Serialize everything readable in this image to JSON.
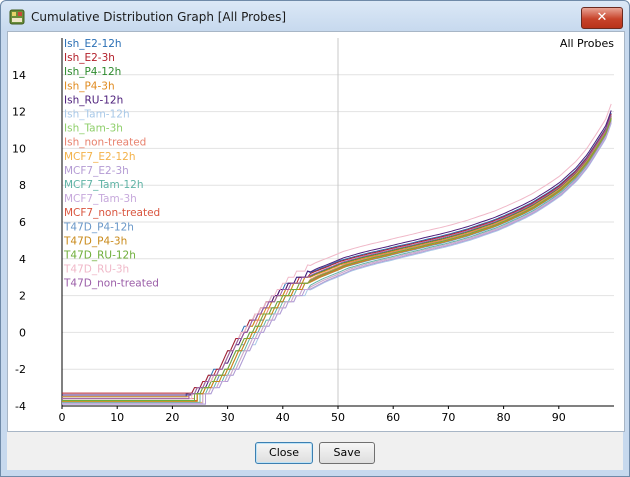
{
  "window": {
    "title": "Cumulative Distribution Graph [All Probes]",
    "close_glyph": "✕"
  },
  "buttons": {
    "close": "Close",
    "save": "Save"
  },
  "chart_data": {
    "type": "line",
    "title": "All Probes",
    "xlabel": "",
    "ylabel": "",
    "xlim": [
      0,
      100
    ],
    "ylim": [
      -4,
      16
    ],
    "xticks": [
      0,
      10,
      20,
      30,
      40,
      50,
      60,
      70,
      80,
      90
    ],
    "yticks": [
      -4,
      -2,
      0,
      2,
      4,
      6,
      8,
      10,
      12,
      14
    ],
    "grid": {
      "x": [
        50
      ],
      "y": [
        -4,
        -2,
        0,
        2,
        4,
        6,
        8,
        10,
        12,
        14
      ]
    },
    "legend_position": "top-left",
    "base_curve": {
      "x": [
        22,
        25,
        28,
        30,
        33,
        35,
        38,
        40,
        43,
        45,
        48,
        50,
        53,
        55,
        58,
        60,
        63,
        65,
        68,
        70,
        73,
        75,
        78,
        80,
        83,
        85,
        88,
        90,
        93,
        95,
        97,
        98.5,
        99.6
      ],
      "y": [
        -3.4,
        -2.8,
        -1.9,
        -0.9,
        0.3,
        1.0,
        1.9,
        2.4,
        2.9,
        3.2,
        3.55,
        3.8,
        4.05,
        4.2,
        4.4,
        4.55,
        4.75,
        4.9,
        5.1,
        5.25,
        5.5,
        5.7,
        6.0,
        6.25,
        6.65,
        6.95,
        7.5,
        7.9,
        8.7,
        9.4,
        10.3,
        11.0,
        11.9
      ]
    },
    "series": [
      {
        "name": "Ish_E2-12h",
        "color": "#2a6fb5",
        "start_x": 22.5,
        "floor_y": -3.5,
        "offset": 0.1
      },
      {
        "name": "Ish_E2-3h",
        "color": "#b3202b",
        "start_x": 22.5,
        "floor_y": -3.3,
        "offset": 0.05
      },
      {
        "name": "Ish_P4-12h",
        "color": "#2e8b2e",
        "start_x": 23.0,
        "floor_y": -3.6,
        "offset": -0.05
      },
      {
        "name": "Ish_P4-3h",
        "color": "#e08a1e",
        "start_x": 23.0,
        "floor_y": -3.5,
        "offset": -0.1
      },
      {
        "name": "Ish_RU-12h",
        "color": "#4b1d7a",
        "start_x": 23.5,
        "floor_y": -3.4,
        "offset": 0.25
      },
      {
        "name": "Ish_Tam-12h",
        "color": "#a9c9e8",
        "start_x": 26.0,
        "floor_y": -3.9,
        "offset": -0.45
      },
      {
        "name": "Ish_Tam-3h",
        "color": "#8fcf6b",
        "start_x": 24.5,
        "floor_y": -3.7,
        "offset": -0.2
      },
      {
        "name": "Ish_non-treated",
        "color": "#e8826e",
        "start_x": 24.0,
        "floor_y": -3.6,
        "offset": -0.1
      },
      {
        "name": "MCF7_E2-12h",
        "color": "#f3b24a",
        "start_x": 25.5,
        "floor_y": -3.8,
        "offset": -0.35
      },
      {
        "name": "MCF7_E2-3h",
        "color": "#b49bd4",
        "start_x": 26.0,
        "floor_y": -3.9,
        "offset": -0.4
      },
      {
        "name": "MCF7_Tam-12h",
        "color": "#5fb3a5",
        "start_x": 25.0,
        "floor_y": -3.8,
        "offset": -0.3
      },
      {
        "name": "MCF7_Tam-3h",
        "color": "#c7a9dc",
        "start_x": 25.5,
        "floor_y": -3.85,
        "offset": -0.35
      },
      {
        "name": "MCF7_non-treated",
        "color": "#d9553f",
        "start_x": 24.5,
        "floor_y": -3.7,
        "offset": -0.15
      },
      {
        "name": "T47D_P4-12h",
        "color": "#6a98c9",
        "start_x": 24.0,
        "floor_y": -3.7,
        "offset": -0.25
      },
      {
        "name": "T47D_P4-3h",
        "color": "#c98a1a",
        "start_x": 24.5,
        "floor_y": -3.75,
        "offset": -0.2
      },
      {
        "name": "T47D_RU-12h",
        "color": "#6fae3a",
        "start_x": 24.0,
        "floor_y": -3.7,
        "offset": -0.15
      },
      {
        "name": "T47D_RU-3h",
        "color": "#f0b8c8",
        "start_x": 23.5,
        "floor_y": -3.6,
        "offset": 0.6
      },
      {
        "name": "T47D_non-treated",
        "color": "#9b5ea8",
        "start_x": 23.0,
        "floor_y": -3.6,
        "offset": 0.0
      }
    ]
  }
}
